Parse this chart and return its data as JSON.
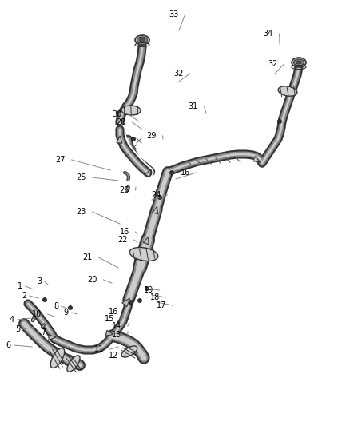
{
  "background_color": "#ffffff",
  "label_color": "#000000",
  "label_fontsize": 7.0,
  "leader_color": "#888888",
  "pipe_dark": "#333333",
  "pipe_mid": "#888888",
  "pipe_light": "#cccccc",
  "part_color": "#555555",
  "label_data": [
    [
      "1",
      28,
      358,
      42,
      362
    ],
    [
      "2",
      33,
      370,
      48,
      373
    ],
    [
      "3",
      52,
      352,
      60,
      356
    ],
    [
      "4",
      18,
      400,
      38,
      398
    ],
    [
      "5",
      25,
      412,
      42,
      409
    ],
    [
      "6",
      14,
      432,
      40,
      434
    ],
    [
      "7",
      57,
      416,
      70,
      420
    ],
    [
      "8",
      73,
      383,
      84,
      386
    ],
    [
      "9",
      86,
      391,
      96,
      393
    ],
    [
      "10",
      52,
      393,
      68,
      396
    ],
    [
      "11",
      130,
      437,
      148,
      434
    ],
    [
      "12",
      148,
      445,
      158,
      441
    ],
    [
      "13",
      152,
      419,
      160,
      415
    ],
    [
      "14",
      152,
      408,
      162,
      405
    ],
    [
      "15",
      143,
      399,
      155,
      397
    ],
    [
      "16",
      148,
      390,
      158,
      386
    ],
    [
      "17",
      208,
      382,
      196,
      378
    ],
    [
      "18",
      200,
      372,
      190,
      369
    ],
    [
      "19",
      192,
      363,
      183,
      361
    ],
    [
      "20",
      122,
      350,
      140,
      354
    ],
    [
      "21",
      116,
      322,
      148,
      335
    ],
    [
      "22",
      160,
      300,
      172,
      303
    ],
    [
      "16",
      162,
      290,
      172,
      293
    ],
    [
      "23",
      108,
      265,
      150,
      280
    ],
    [
      "24",
      202,
      244,
      190,
      250
    ],
    [
      "25",
      108,
      222,
      148,
      226
    ],
    [
      "16",
      238,
      216,
      220,
      224
    ],
    [
      "26",
      162,
      238,
      170,
      234
    ],
    [
      "27",
      82,
      200,
      138,
      213
    ],
    [
      "28",
      158,
      153,
      178,
      162
    ],
    [
      "29",
      196,
      170,
      204,
      174
    ],
    [
      "30",
      153,
      143,
      174,
      152
    ],
    [
      "31",
      248,
      133,
      258,
      142
    ],
    [
      "32",
      230,
      92,
      224,
      102
    ],
    [
      "33",
      224,
      18,
      224,
      38
    ],
    [
      "34",
      342,
      42,
      350,
      55
    ],
    [
      "32",
      348,
      80,
      344,
      92
    ]
  ]
}
